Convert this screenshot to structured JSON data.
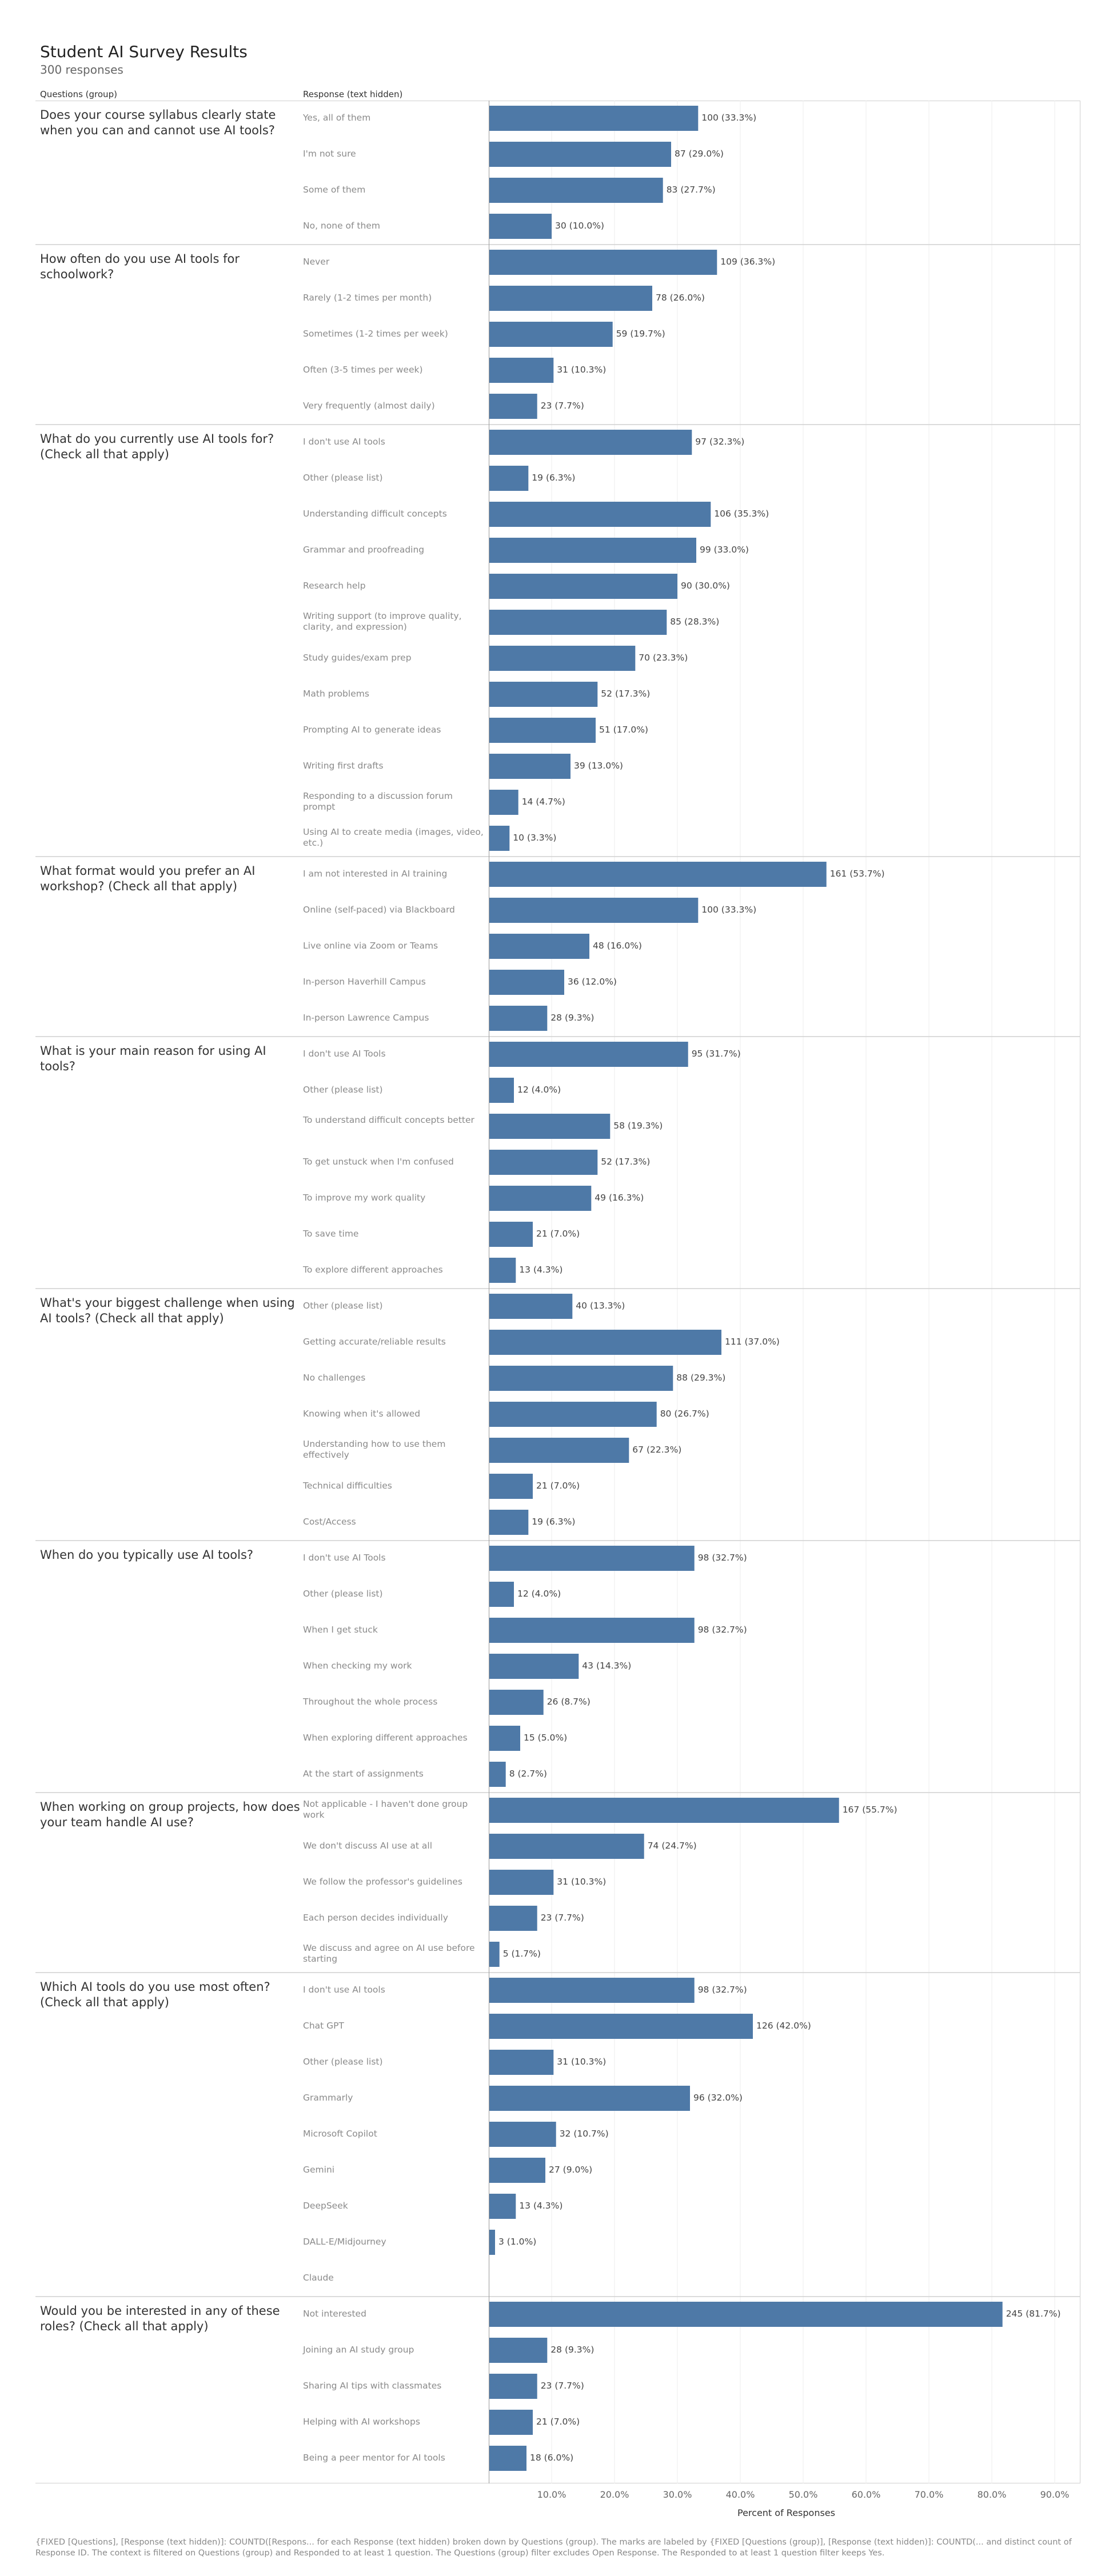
{
  "chart_data": {
    "type": "bar",
    "orientation": "horizontal",
    "title": "Student AI Survey Results",
    "subtitle": "300 responses",
    "column_headers": [
      "Questions (group)",
      "Response (text hidden)"
    ],
    "xlabel": "Percent of Responses",
    "xlim": [
      0,
      0.95
    ],
    "xticks": [
      "10.0%",
      "20.0%",
      "30.0%",
      "40.0%",
      "50.0%",
      "60.0%",
      "70.0%",
      "80.0%",
      "90.0%"
    ],
    "xtick_values": [
      0.1,
      0.2,
      0.3,
      0.4,
      0.5,
      0.6,
      0.7,
      0.8,
      0.9
    ],
    "grid": true,
    "bar_color": "#4e79a7",
    "groups": [
      {
        "question": "Does your course syllabus clearly state when you can and cannot use AI tools?",
        "items": [
          {
            "response": "Yes, all of them",
            "count": 100,
            "pct": 33.3,
            "label": "100 (33.3%)"
          },
          {
            "response": "I'm not sure",
            "count": 87,
            "pct": 29.0,
            "label": "87 (29.0%)"
          },
          {
            "response": "Some of them",
            "count": 83,
            "pct": 27.7,
            "label": "83 (27.7%)"
          },
          {
            "response": "No, none of them",
            "count": 30,
            "pct": 10.0,
            "label": "30 (10.0%)"
          }
        ]
      },
      {
        "question": "How often do you use AI tools for schoolwork?",
        "items": [
          {
            "response": "Never",
            "count": 109,
            "pct": 36.3,
            "label": "109 (36.3%)"
          },
          {
            "response": "Rarely (1-2 times per month)",
            "count": 78,
            "pct": 26.0,
            "label": "78 (26.0%)"
          },
          {
            "response": "Sometimes (1-2 times per week)",
            "count": 59,
            "pct": 19.7,
            "label": "59 (19.7%)"
          },
          {
            "response": "Often (3-5 times per week)",
            "count": 31,
            "pct": 10.3,
            "label": "31 (10.3%)"
          },
          {
            "response": "Very frequently (almost daily)",
            "count": 23,
            "pct": 7.7,
            "label": "23 (7.7%)"
          }
        ]
      },
      {
        "question": "What do you currently use AI tools for? (Check all that apply)",
        "items": [
          {
            "response": "I don't use AI tools",
            "count": 97,
            "pct": 32.3,
            "label": "97 (32.3%)"
          },
          {
            "response": "Other (please list)",
            "count": 19,
            "pct": 6.3,
            "label": "19 (6.3%)"
          },
          {
            "response": "Understanding difficult concepts",
            "count": 106,
            "pct": 35.3,
            "label": "106 (35.3%)"
          },
          {
            "response": "Grammar and proofreading",
            "count": 99,
            "pct": 33.0,
            "label": "99 (33.0%)"
          },
          {
            "response": "Research help",
            "count": 90,
            "pct": 30.0,
            "label": "90 (30.0%)"
          },
          {
            "response": "Writing support (to improve quality, clarity, and expression)",
            "count": 85,
            "pct": 28.3,
            "label": "85 (28.3%)"
          },
          {
            "response": "Study guides/exam prep",
            "count": 70,
            "pct": 23.3,
            "label": "70 (23.3%)"
          },
          {
            "response": "Math problems",
            "count": 52,
            "pct": 17.3,
            "label": "52 (17.3%)"
          },
          {
            "response": "Prompting AI to generate ideas",
            "count": 51,
            "pct": 17.0,
            "label": "51 (17.0%)"
          },
          {
            "response": "Writing first drafts",
            "count": 39,
            "pct": 13.0,
            "label": "39 (13.0%)"
          },
          {
            "response": "Responding to a discussion forum prompt",
            "count": 14,
            "pct": 4.7,
            "label": "14 (4.7%)"
          },
          {
            "response": "Using AI to create media (images, video, etc.)",
            "count": 10,
            "pct": 3.3,
            "label": "10 (3.3%)"
          }
        ]
      },
      {
        "question": "What format would you prefer an AI workshop? (Check all that apply)",
        "items": [
          {
            "response": "I am not interested in AI training",
            "count": 161,
            "pct": 53.7,
            "label": "161 (53.7%)"
          },
          {
            "response": "Online (self-paced) via Blackboard",
            "count": 100,
            "pct": 33.3,
            "label": "100 (33.3%)"
          },
          {
            "response": "Live online via Zoom or Teams",
            "count": 48,
            "pct": 16.0,
            "label": "48 (16.0%)"
          },
          {
            "response": "In-person Haverhill Campus",
            "count": 36,
            "pct": 12.0,
            "label": "36 (12.0%)"
          },
          {
            "response": "In-person Lawrence Campus",
            "count": 28,
            "pct": 9.3,
            "label": "28 (9.3%)"
          }
        ]
      },
      {
        "question": "What is your main reason for using AI tools?",
        "items": [
          {
            "response": "I don't use AI Tools",
            "count": 95,
            "pct": 31.7,
            "label": "95 (31.7%)"
          },
          {
            "response": "Other (please list)",
            "count": 12,
            "pct": 4.0,
            "label": "12 (4.0%)"
          },
          {
            "response": "To understand difficult concepts better",
            "count": 58,
            "pct": 19.3,
            "label": "58 (19.3%)"
          },
          {
            "response": "To get unstuck when I'm confused",
            "count": 52,
            "pct": 17.3,
            "label": "52 (17.3%)"
          },
          {
            "response": "To improve my work quality",
            "count": 49,
            "pct": 16.3,
            "label": "49 (16.3%)"
          },
          {
            "response": "To save time",
            "count": 21,
            "pct": 7.0,
            "label": "21 (7.0%)"
          },
          {
            "response": "To explore different approaches",
            "count": 13,
            "pct": 4.3,
            "label": "13 (4.3%)"
          }
        ]
      },
      {
        "question": "What's your biggest challenge when using AI tools? (Check all that apply)",
        "items": [
          {
            "response": "Other (please list)",
            "count": 40,
            "pct": 13.3,
            "label": "40 (13.3%)"
          },
          {
            "response": "Getting accurate/reliable results",
            "count": 111,
            "pct": 37.0,
            "label": "111 (37.0%)"
          },
          {
            "response": "No challenges",
            "count": 88,
            "pct": 29.3,
            "label": "88 (29.3%)"
          },
          {
            "response": "Knowing when it's allowed",
            "count": 80,
            "pct": 26.7,
            "label": "80 (26.7%)"
          },
          {
            "response": "Understanding how to use them effectively",
            "count": 67,
            "pct": 22.3,
            "label": "67 (22.3%)"
          },
          {
            "response": "Technical difficulties",
            "count": 21,
            "pct": 7.0,
            "label": "21 (7.0%)"
          },
          {
            "response": "Cost/Access",
            "count": 19,
            "pct": 6.3,
            "label": "19 (6.3%)"
          }
        ]
      },
      {
        "question": "When do you typically use AI tools?",
        "items": [
          {
            "response": "I don't use AI Tools",
            "count": 98,
            "pct": 32.7,
            "label": "98 (32.7%)"
          },
          {
            "response": "Other (please list)",
            "count": 12,
            "pct": 4.0,
            "label": "12 (4.0%)"
          },
          {
            "response": "When I get stuck",
            "count": 98,
            "pct": 32.7,
            "label": "98 (32.7%)"
          },
          {
            "response": "When checking my work",
            "count": 43,
            "pct": 14.3,
            "label": "43 (14.3%)"
          },
          {
            "response": "Throughout the whole process",
            "count": 26,
            "pct": 8.7,
            "label": "26 (8.7%)"
          },
          {
            "response": "When exploring different approaches",
            "count": 15,
            "pct": 5.0,
            "label": "15 (5.0%)"
          },
          {
            "response": "At the start of assignments",
            "count": 8,
            "pct": 2.7,
            "label": "8 (2.7%)"
          }
        ]
      },
      {
        "question": "When working on group projects, how does your team handle AI use?",
        "items": [
          {
            "response": "Not applicable - I haven't done group work",
            "count": 167,
            "pct": 55.7,
            "label": "167 (55.7%)"
          },
          {
            "response": "We don't discuss AI use at all",
            "count": 74,
            "pct": 24.7,
            "label": "74 (24.7%)"
          },
          {
            "response": "We follow the professor's guidelines",
            "count": 31,
            "pct": 10.3,
            "label": "31 (10.3%)"
          },
          {
            "response": "Each person decides individually",
            "count": 23,
            "pct": 7.7,
            "label": "23 (7.7%)"
          },
          {
            "response": "We discuss and agree on AI use before starting",
            "count": 5,
            "pct": 1.7,
            "label": "5 (1.7%)"
          }
        ]
      },
      {
        "question": "Which AI tools do you use most often? (Check all that apply)",
        "items": [
          {
            "response": "I don't use AI tools",
            "count": 98,
            "pct": 32.7,
            "label": "98 (32.7%)"
          },
          {
            "response": "Chat GPT",
            "count": 126,
            "pct": 42.0,
            "label": "126 (42.0%)"
          },
          {
            "response": "Other (please list)",
            "count": 31,
            "pct": 10.3,
            "label": "31 (10.3%)"
          },
          {
            "response": "Grammarly",
            "count": 96,
            "pct": 32.0,
            "label": "96 (32.0%)"
          },
          {
            "response": "Microsoft Copilot",
            "count": 32,
            "pct": 10.7,
            "label": "32 (10.7%)"
          },
          {
            "response": "Gemini",
            "count": 27,
            "pct": 9.0,
            "label": "27 (9.0%)"
          },
          {
            "response": "DeepSeek",
            "count": 13,
            "pct": 4.3,
            "label": "13 (4.3%)"
          },
          {
            "response": "DALL-E/Midjourney",
            "count": 3,
            "pct": 1.0,
            "label": "3 (1.0%)"
          },
          {
            "response": "Claude",
            "count": null,
            "pct": 0,
            "label": ""
          }
        ]
      },
      {
        "question": "Would you be interested in any of these roles? (Check all that apply)",
        "items": [
          {
            "response": "Not interested",
            "count": 245,
            "pct": 81.7,
            "label": "245 (81.7%)"
          },
          {
            "response": "Joining an AI study group",
            "count": 28,
            "pct": 9.3,
            "label": "28 (9.3%)"
          },
          {
            "response": "Sharing AI tips with classmates",
            "count": 23,
            "pct": 7.7,
            "label": "23 (7.7%)"
          },
          {
            "response": "Helping with AI workshops",
            "count": 21,
            "pct": 7.0,
            "label": "21 (7.0%)"
          },
          {
            "response": "Being a peer mentor for AI tools",
            "count": 18,
            "pct": 6.0,
            "label": "18 (6.0%)"
          }
        ]
      }
    ],
    "footnote": "{FIXED [Questions], [Response (text hidden)]: COUNTD([Respons... for each Response (text hidden) broken down by Questions (group). The marks are labeled by {FIXED [Questions (group)], [Response (text hidden)]: COUNTD(... and distinct count of Response ID. The context is filtered on Questions (group) and Responded to at least 1 question. The Questions (group) filter excludes Open Response. The Responded to at least 1 question filter keeps Yes."
  }
}
